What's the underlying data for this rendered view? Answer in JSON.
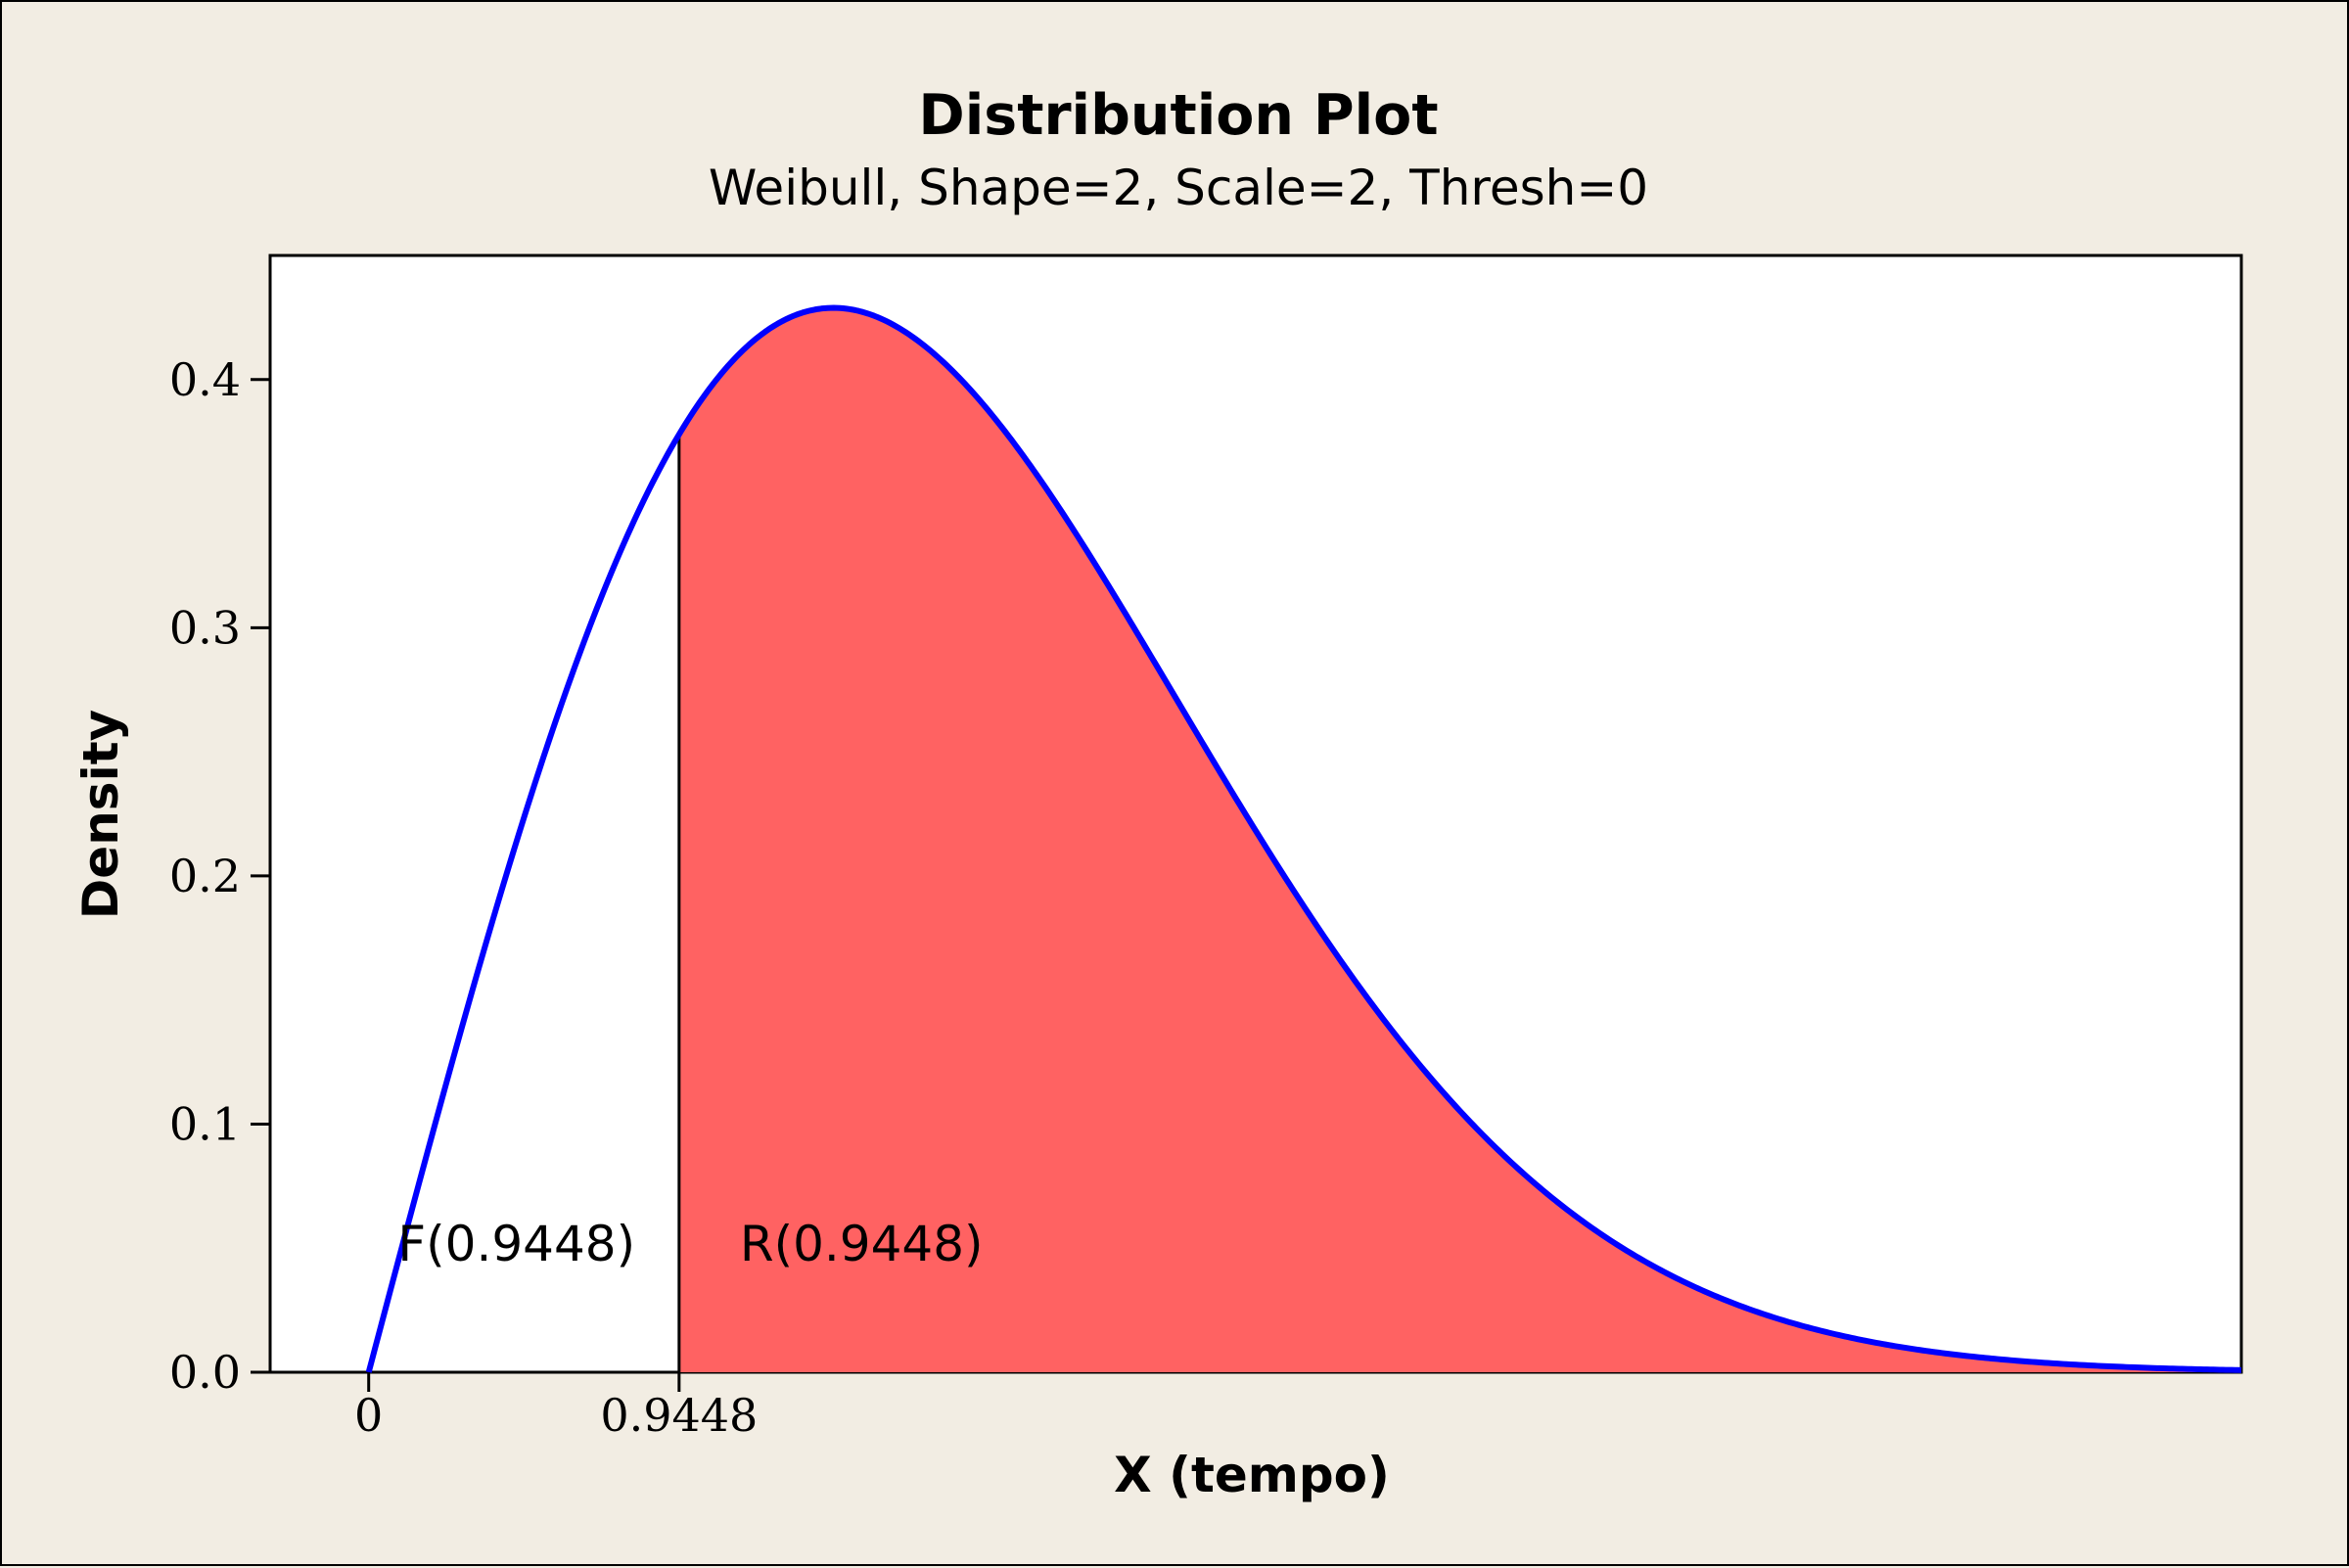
{
  "chart_data": {
    "type": "area",
    "title": "Distribution Plot",
    "subtitle": "Weibull, Shape=2, Scale=2, Thresh=0",
    "xlabel": "X (tempo)",
    "ylabel": "Density",
    "distribution": {
      "name": "Weibull",
      "shape": 2,
      "scale": 2,
      "threshold": 0
    },
    "xlim": [
      -0.3,
      5.7
    ],
    "ylim": [
      0,
      0.45
    ],
    "x_ticks": [
      {
        "value": 0,
        "label": "0"
      },
      {
        "value": 0.9448,
        "label": "0.9448"
      }
    ],
    "y_ticks": [
      {
        "value": 0.0,
        "label": "0.0"
      },
      {
        "value": 0.1,
        "label": "0.1"
      },
      {
        "value": 0.2,
        "label": "0.2"
      },
      {
        "value": 0.3,
        "label": "0.3"
      },
      {
        "value": 0.4,
        "label": "0.4"
      }
    ],
    "cutoff": 0.9448,
    "shaded_region": "right",
    "annotations": [
      {
        "text": "F(0.9448)",
        "x": 0.45,
        "y": 0.045
      },
      {
        "text": "R(0.9448)",
        "x": 1.5,
        "y": 0.045
      }
    ],
    "colors": {
      "curve": "#0000ff",
      "fill": "#ff6262",
      "plot_bg": "#ffffff",
      "frame_bg": "#f2ede3"
    },
    "grid": false,
    "legend": "none"
  }
}
